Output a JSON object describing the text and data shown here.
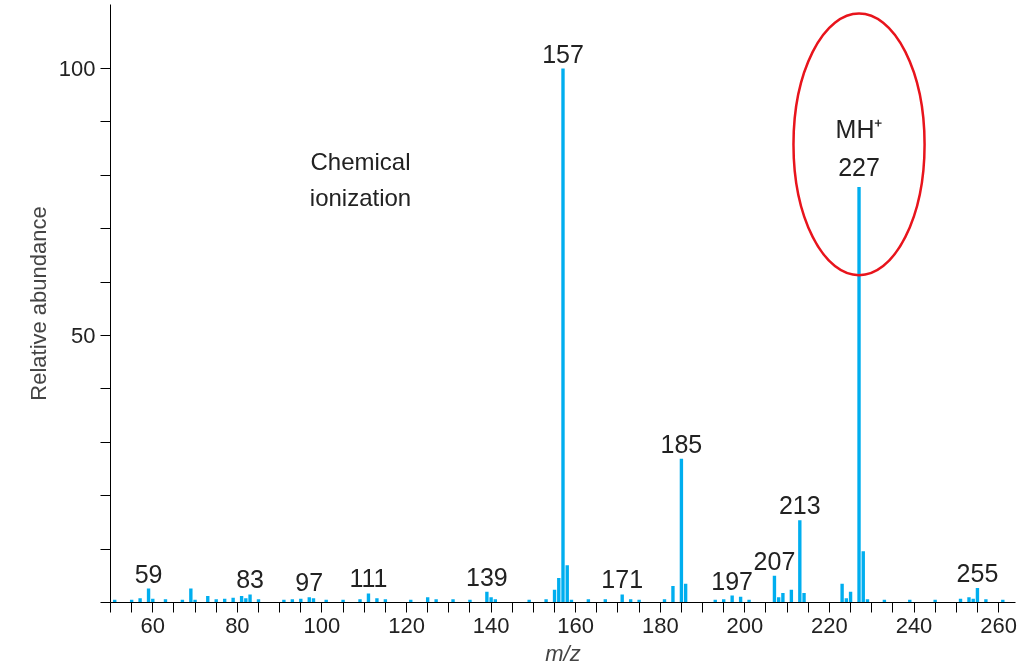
{
  "chart_data": {
    "type": "bar",
    "xlabel": "m/z",
    "ylabel": "Relative abundance",
    "x": [
      51,
      55,
      57,
      59,
      60,
      63,
      67,
      69,
      70,
      73,
      75,
      77,
      79,
      81,
      82,
      83,
      85,
      91,
      93,
      95,
      97,
      98,
      101,
      105,
      109,
      111,
      113,
      115,
      121,
      125,
      127,
      131,
      135,
      139,
      140,
      141,
      149,
      153,
      155,
      156,
      157,
      158,
      159,
      163,
      167,
      171,
      173,
      175,
      181,
      183,
      185,
      186,
      193,
      195,
      197,
      199,
      201,
      207,
      208,
      209,
      211,
      213,
      214,
      223,
      224,
      225,
      227,
      228,
      229,
      233,
      239,
      245,
      251,
      253,
      254,
      255,
      257,
      261
    ],
    "values": [
      0.5,
      0.5,
      0.8,
      2.6,
      0.7,
      0.6,
      0.5,
      2.6,
      0.5,
      1.2,
      0.6,
      0.7,
      0.9,
      1.2,
      0.8,
      1.5,
      0.6,
      0.5,
      0.6,
      0.7,
      1.0,
      0.8,
      0.5,
      0.5,
      0.6,
      1.7,
      0.8,
      0.6,
      0.5,
      1.0,
      0.6,
      0.6,
      0.5,
      2.0,
      1.0,
      0.6,
      0.5,
      0.6,
      2.4,
      4.6,
      100,
      7.0,
      0.5,
      0.6,
      0.6,
      1.5,
      0.6,
      0.5,
      0.6,
      3.1,
      26.9,
      3.5,
      0.5,
      0.6,
      1.3,
      1.1,
      0.5,
      5.0,
      1.0,
      1.8,
      2.4,
      15.4,
      1.8,
      3.5,
      0.8,
      2.0,
      77.8,
      9.6,
      0.6,
      0.5,
      0.5,
      0.5,
      0.7,
      1.0,
      0.7,
      2.7,
      0.6,
      0.5
    ],
    "color": "#00aeef",
    "xlim": [
      50,
      264
    ],
    "xticks": [
      {
        "value": 50,
        "label": null
      },
      {
        "value": 55,
        "label": null
      },
      60,
      {
        "value": 65,
        "label": null
      },
      {
        "value": 70,
        "label": null
      },
      {
        "value": 75,
        "label": null
      },
      80,
      {
        "value": 85,
        "label": null
      },
      {
        "value": 90,
        "label": null
      },
      {
        "value": 95,
        "label": null
      },
      100,
      {
        "value": 105,
        "label": null
      },
      {
        "value": 110,
        "label": null
      },
      {
        "value": 115,
        "label": null
      },
      120,
      {
        "value": 125,
        "label": null
      },
      {
        "value": 130,
        "label": null
      },
      {
        "value": 135,
        "label": null
      },
      140,
      {
        "value": 145,
        "label": null
      },
      {
        "value": 150,
        "label": null
      },
      {
        "value": 155,
        "label": null
      },
      160,
      {
        "value": 165,
        "label": null
      },
      {
        "value": 170,
        "label": null
      },
      {
        "value": 175,
        "label": null
      },
      180,
      {
        "value": 185,
        "label": null
      },
      {
        "value": 190,
        "label": null
      },
      {
        "value": 195,
        "label": null
      },
      200,
      {
        "value": 205,
        "label": null
      },
      {
        "value": 210,
        "label": null
      },
      {
        "value": 215,
        "label": null
      },
      220,
      {
        "value": 225,
        "label": null
      },
      {
        "value": 230,
        "label": null
      },
      {
        "value": 235,
        "label": null
      },
      240,
      {
        "value": 245,
        "label": null
      },
      {
        "value": 250,
        "label": null
      },
      {
        "value": 255,
        "label": null
      },
      260
    ],
    "ylim": [
      0,
      112
    ],
    "yticks": [
      {
        "value": 0,
        "label": null
      },
      {
        "value": 10,
        "label": null
      },
      {
        "value": 20,
        "label": null
      },
      {
        "value": 30,
        "label": null
      },
      {
        "value": 40,
        "label": null
      },
      50,
      {
        "value": 60,
        "label": null
      },
      {
        "value": 70,
        "label": null
      },
      {
        "value": 80,
        "label": null
      },
      {
        "value": 90,
        "label": null
      },
      100
    ],
    "grid": false,
    "annotations": [
      {
        "text": "59",
        "x": 59,
        "y": 2.6
      },
      {
        "text": "83",
        "x": 83,
        "y": 1.5
      },
      {
        "text": "97",
        "x": 97,
        "y": 1.0
      },
      {
        "text": "111",
        "x": 111,
        "y": 1.7
      },
      {
        "text": "139",
        "x": 139,
        "y": 2.0
      },
      {
        "text": "157",
        "x": 157,
        "y": 100
      },
      {
        "text": "171",
        "x": 171,
        "y": 1.5
      },
      {
        "text": "185",
        "x": 185,
        "y": 26.9
      },
      {
        "text": "197",
        "x": 197,
        "y": 1.3
      },
      {
        "text": "207",
        "x": 207,
        "y": 5.0
      },
      {
        "text": "213",
        "x": 213,
        "y": 15.4
      },
      {
        "text": "MH⁺\n227",
        "x": 227,
        "y": 77.8
      },
      {
        "text": "255",
        "x": 255,
        "y": 2.7
      },
      "Chemical\nionization"
    ]
  }
}
